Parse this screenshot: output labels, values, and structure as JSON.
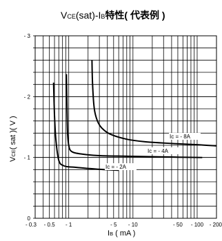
{
  "chart_data": {
    "type": "line",
    "title": {
      "part1": "V",
      "part1_sub": "CE",
      "part2": "(sat)-I",
      "part2_sub": "B",
      "part3": "特性( 代表例 )"
    },
    "xlabel": {
      "main": "I",
      "sub": "B",
      "rest": " ( mA )"
    },
    "ylabel": {
      "main": "V",
      "sub": "CE",
      "rest": "( sat )( V )"
    },
    "x_scale": "log",
    "x_domain": [
      -0.3,
      -200
    ],
    "y_domain": [
      0,
      -3
    ],
    "x_ticks": [
      "- 0.3",
      "- 0.5",
      "- 1",
      "- 5",
      "- 10",
      "- 50",
      "- 100",
      "- 200"
    ],
    "x_tick_values": [
      -0.3,
      -0.5,
      -1,
      -5,
      -10,
      -50,
      -100,
      -200
    ],
    "y_ticks": [
      "0",
      "- 1",
      "- 2",
      "- 3"
    ],
    "y_tick_values": [
      0,
      -1,
      -2,
      -3
    ],
    "grid": true,
    "series": [
      {
        "name": "Ic = - 2A",
        "x": [
          -0.58,
          -0.6,
          -0.63,
          -0.7,
          -0.85,
          -1.2,
          -2,
          -3.5,
          -6
        ],
        "y": [
          -2.23,
          -1.7,
          -1.3,
          -0.95,
          -0.86,
          -0.84,
          -0.82,
          -0.8,
          -0.79
        ]
      },
      {
        "name": "Ic = - 4A",
        "x": [
          -0.92,
          -0.94,
          -0.96,
          -1.0,
          -1.1,
          -1.5,
          -3,
          -8,
          -25,
          -120
        ],
        "y": [
          -2.37,
          -1.8,
          -1.4,
          -1.2,
          -1.1,
          -1.06,
          -1.03,
          -1.02,
          -1.01,
          -1.0
        ]
      },
      {
        "name": "Ic = - 8A",
        "x": [
          -2.3,
          -2.35,
          -2.5,
          -2.8,
          -3.3,
          -4.5,
          -8,
          -15,
          -40,
          -100,
          -200
        ],
        "y": [
          -2.6,
          -2.2,
          -1.8,
          -1.6,
          -1.48,
          -1.38,
          -1.3,
          -1.26,
          -1.23,
          -1.21,
          -1.19
        ]
      }
    ]
  }
}
